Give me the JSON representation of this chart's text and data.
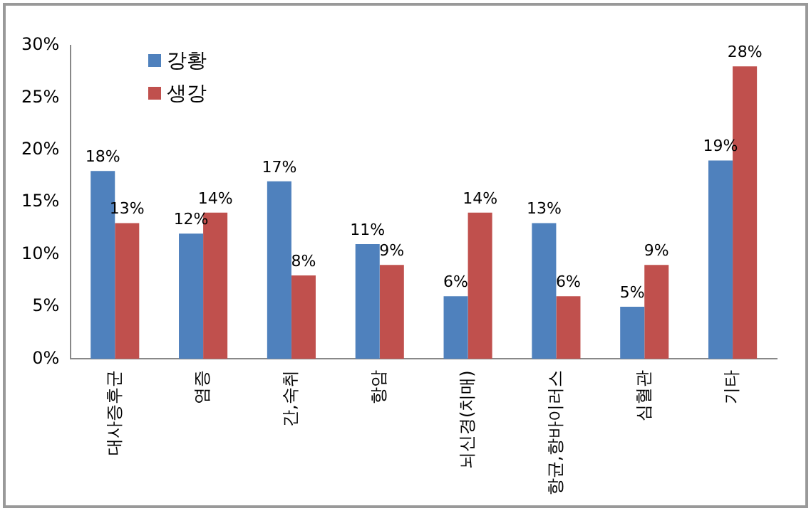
{
  "chart_data": {
    "type": "bar",
    "categories": [
      "대사증후군",
      "염증",
      "간,숙취",
      "항암",
      "뇌신경(치매)",
      "항균,항바이러스",
      "심혈관",
      "기타"
    ],
    "series": [
      {
        "name": "강황",
        "color": "#4f81bd",
        "values": [
          18,
          12,
          17,
          11,
          6,
          13,
          5,
          19
        ],
        "value_labels": [
          "18%",
          "12%",
          "17%",
          "11%",
          "6%",
          "13%",
          "5%",
          "19%"
        ]
      },
      {
        "name": "생강",
        "color": "#c0504d",
        "values": [
          13,
          14,
          8,
          9,
          14,
          6,
          9,
          28
        ],
        "value_labels": [
          "13%",
          "14%",
          "8%",
          "9%",
          "14%",
          "6%",
          "9%",
          "28%"
        ]
      }
    ],
    "ylim": [
      0,
      30
    ],
    "yticks": [
      {
        "value": 0,
        "label": "0%"
      },
      {
        "value": 5,
        "label": "5%"
      },
      {
        "value": 10,
        "label": "10%"
      },
      {
        "value": 15,
        "label": "15%"
      },
      {
        "value": 20,
        "label": "20%"
      },
      {
        "value": 25,
        "label": "25%"
      },
      {
        "value": 30,
        "label": "30%"
      }
    ],
    "grid": false,
    "legend": "top left"
  }
}
